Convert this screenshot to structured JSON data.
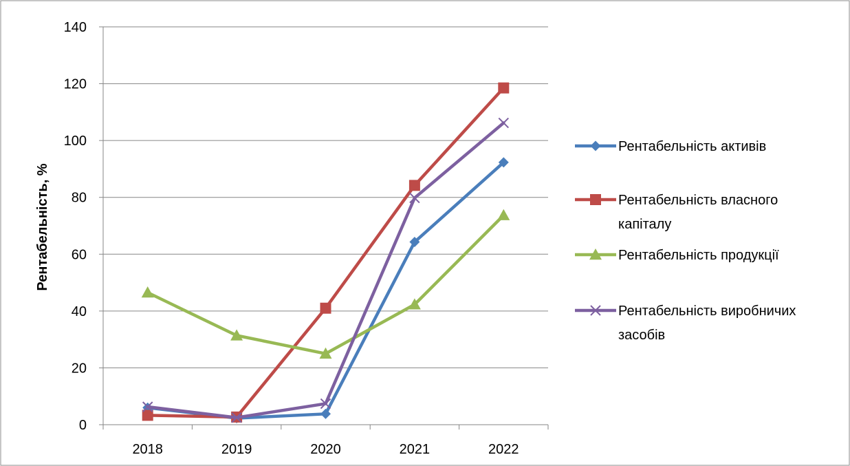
{
  "chart_data": {
    "type": "line",
    "title": "",
    "xlabel": "",
    "ylabel": "Рентабельність, %",
    "categories": [
      "2018",
      "2019",
      "2020",
      "2021",
      "2022"
    ],
    "ylim": [
      0,
      140
    ],
    "yticks": [
      0,
      20,
      40,
      60,
      80,
      100,
      120,
      140
    ],
    "grid": "horizontal",
    "legend_position": "right",
    "series": [
      {
        "name": "Рентабельність активів",
        "legend_lines": [
          "Рентабельність активів"
        ],
        "values": [
          6.0,
          2.3,
          3.8,
          64.3,
          92.3
        ],
        "color": "#4a7ebb",
        "marker": "diamond"
      },
      {
        "name": "Рентабельність власного капіталу",
        "legend_lines": [
          "Рентабельність власного",
          "капіталу"
        ],
        "values": [
          3.3,
          2.7,
          41.0,
          84.2,
          118.5
        ],
        "color": "#be4b48",
        "marker": "square"
      },
      {
        "name": "Рентабельність продукції",
        "legend_lines": [
          "Рентабельність продукції"
        ],
        "values": [
          46.5,
          31.4,
          25.0,
          42.3,
          73.7
        ],
        "color": "#98b954",
        "marker": "triangle"
      },
      {
        "name": "Рентабельність виробничих засобів",
        "legend_lines": [
          "Рентабельність виробничих",
          "засобів"
        ],
        "values": [
          6.3,
          2.5,
          7.4,
          79.8,
          106.2
        ],
        "color": "#7d60a0",
        "marker": "x"
      }
    ]
  }
}
